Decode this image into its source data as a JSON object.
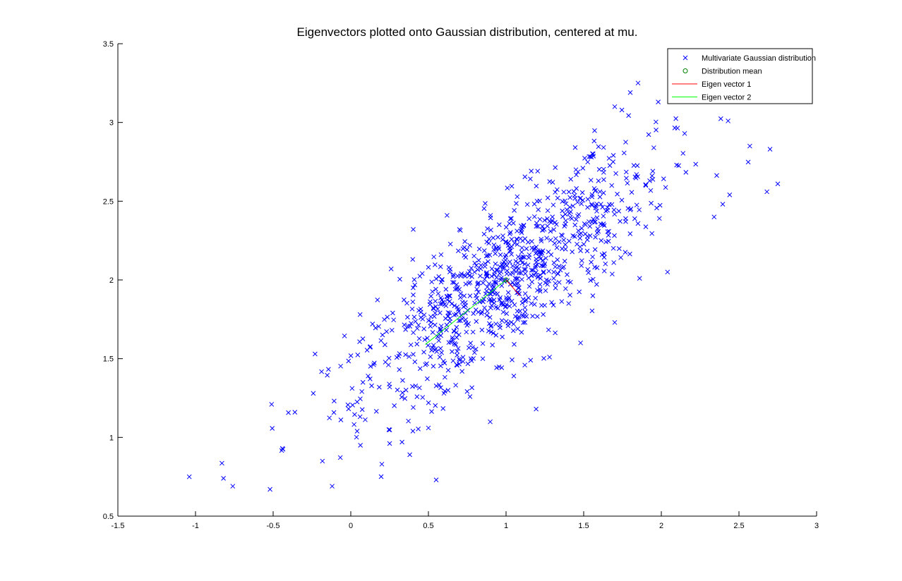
{
  "chart_data": {
    "type": "scatter",
    "title": "Eigenvectors plotted onto Gaussian distribution, centered at mu.",
    "xlabel": "",
    "ylabel": "",
    "xlim": [
      -1.5,
      3
    ],
    "ylim": [
      0.5,
      3.5
    ],
    "xticks": [
      "-1.5",
      "-1",
      "-0.5",
      "0",
      "0.5",
      "1",
      "1.5",
      "2",
      "2.5",
      "3"
    ],
    "yticks": [
      "0.5",
      "1",
      "1.5",
      "2",
      "2.5",
      "3",
      "3.5"
    ],
    "grid": false,
    "legend_position": "top-right",
    "legend": [
      {
        "label": "Multivariate Gaussian distribution",
        "marker": "x",
        "color": "#0000ff"
      },
      {
        "label": "Distribution mean",
        "marker": "o",
        "color": "#008000"
      },
      {
        "label": "Eigen vector 1",
        "marker": "line",
        "color": "#ff0000"
      },
      {
        "label": "Eigen vector 2",
        "marker": "line",
        "color": "#00ff00"
      }
    ],
    "series": [
      {
        "name": "Multivariate Gaussian distribution",
        "marker": "x",
        "color": "#0000ff",
        "point_count": 1000,
        "points_sample": [
          [
            -1.04,
            0.75
          ],
          [
            -0.82,
            0.74
          ],
          [
            -0.76,
            0.69
          ],
          [
            -0.52,
            0.67
          ],
          [
            -0.12,
            0.69
          ],
          [
            0.55,
            0.73
          ],
          [
            -0.51,
            1.21
          ],
          [
            -0.44,
            0.93
          ],
          [
            -0.36,
            1.16
          ],
          [
            -0.23,
            1.53
          ],
          [
            0.06,
            1.78
          ],
          [
            0.14,
            1.72
          ],
          [
            0.26,
            2.07
          ],
          [
            0.27,
            1.79
          ],
          [
            0.5,
            2.08
          ],
          [
            0.62,
            2.41
          ],
          [
            0.7,
            2.32
          ],
          [
            0.9,
            2.41
          ],
          [
            1.0,
            2.24
          ],
          [
            1.1,
            2.3
          ],
          [
            1.2,
            2.5
          ],
          [
            1.3,
            2.62
          ],
          [
            1.45,
            2.7
          ],
          [
            1.55,
            2.78
          ],
          [
            1.7,
            3.1
          ],
          [
            1.8,
            3.19
          ],
          [
            1.85,
            3.25
          ],
          [
            1.98,
            3.13
          ],
          [
            2.43,
            3.01
          ],
          [
            2.57,
            2.85
          ],
          [
            2.7,
            2.83
          ],
          [
            2.75,
            2.61
          ],
          [
            2.68,
            2.56
          ],
          [
            2.44,
            2.54
          ],
          [
            2.34,
            2.4
          ],
          [
            2.04,
            2.05
          ],
          [
            1.86,
            2.01
          ],
          [
            1.7,
            1.73
          ],
          [
            1.48,
            1.6
          ],
          [
            1.28,
            1.51
          ],
          [
            1.05,
            1.39
          ],
          [
            0.85,
            1.5
          ],
          [
            0.6,
            1.28
          ],
          [
            0.4,
            1.04
          ],
          [
            0.2,
            0.83
          ],
          [
            0.33,
            0.97
          ],
          [
            0.38,
            0.89
          ],
          [
            0.5,
            1.06
          ],
          [
            1.62,
            2.35
          ],
          [
            1.9,
            2.6
          ]
        ]
      },
      {
        "name": "Distribution mean",
        "marker": "o",
        "color": "#008000",
        "points": [
          [
            1.0,
            2.0
          ]
        ]
      },
      {
        "name": "Eigen vector 1",
        "marker": "line",
        "color": "#ff0000",
        "points": [
          [
            1.0,
            2.0
          ],
          [
            1.09,
            1.9
          ]
        ]
      },
      {
        "name": "Eigen vector 2",
        "marker": "line",
        "color": "#00ff00",
        "points": [
          [
            1.0,
            2.0
          ],
          [
            0.48,
            1.59
          ]
        ]
      }
    ]
  }
}
